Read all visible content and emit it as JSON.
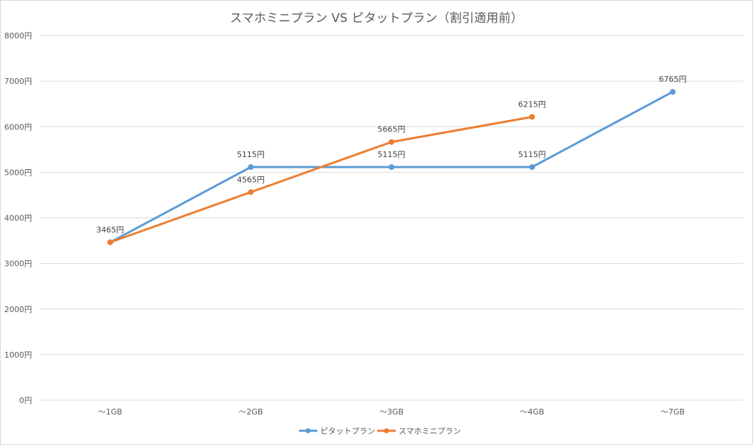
{
  "chart_data": {
    "type": "line",
    "title": "スマホミニプラン VS ピタットプラン（割引適用前）",
    "categories": [
      "～1GB",
      "～2GB",
      "～3GB",
      "～4GB",
      "～7GB"
    ],
    "y_ticks": [
      "0円",
      "1000円",
      "2000円",
      "3000円",
      "4000円",
      "5000円",
      "6000円",
      "7000円",
      "8000円"
    ],
    "ylim": [
      0,
      8000
    ],
    "grid": true,
    "legend_position": "bottom",
    "series": [
      {
        "name": "ピタットプラン",
        "color": "#5b9bd5",
        "values": [
          3465,
          5115,
          5115,
          5115,
          6765
        ],
        "labels": [
          "3465円",
          "5115円",
          "5115円",
          "5115円",
          "6765円"
        ]
      },
      {
        "name": "スマホミニプラン",
        "color": "#ed7d31",
        "values": [
          3465,
          4565,
          5665,
          6215,
          null
        ],
        "labels": [
          "",
          "4565円",
          "5665円",
          "6215円",
          ""
        ]
      }
    ]
  }
}
